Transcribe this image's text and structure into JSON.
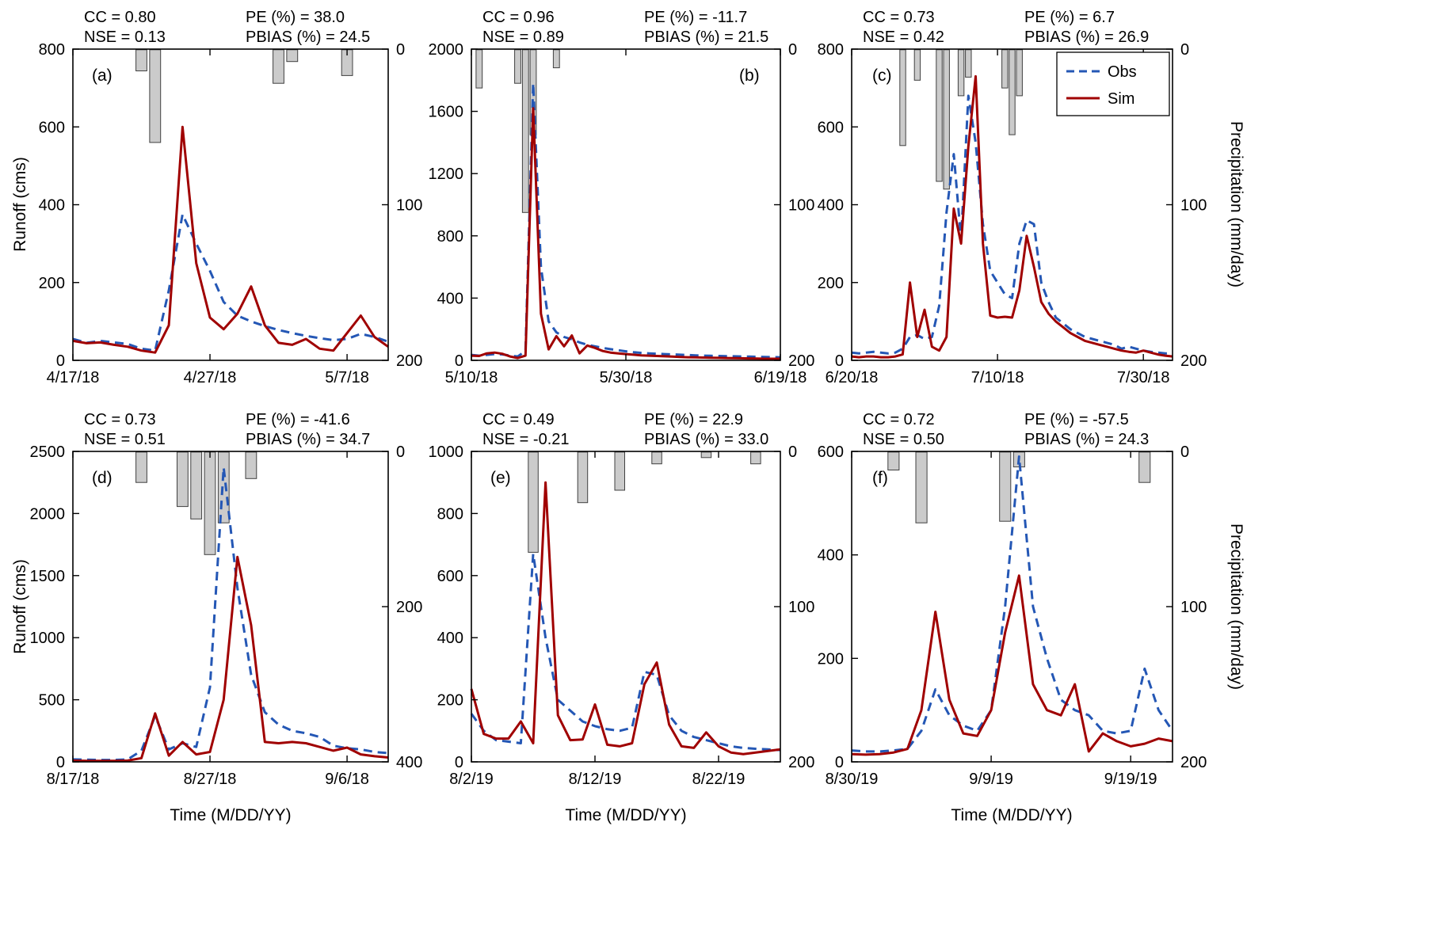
{
  "figure": {
    "ylabel_left": "Runoff (cms)",
    "ylabel_right": "Precipitation (mm/day)",
    "xlabel": "Time (M/DD/YY)",
    "legend": {
      "obs": "Obs",
      "sim": "Sim"
    },
    "colors": {
      "obs": "#2457b5",
      "sim": "#a00000",
      "precip_fill": "#cbcbcb",
      "precip_edge": "#404040",
      "axis": "#000000",
      "background": "#ffffff"
    }
  },
  "chart_data": [
    {
      "id": "a",
      "letter": "(a)",
      "type": "line+bar",
      "stats": {
        "cc": "CC = 0.80",
        "nse": "NSE = 0.13",
        "pe": "PE (%) = 38.0",
        "pbias": "PBIAS (%) = 24.5"
      },
      "n_days": 24,
      "x_ticks": [
        {
          "day": 0,
          "label": "4/17/18"
        },
        {
          "day": 10,
          "label": "4/27/18"
        },
        {
          "day": 20,
          "label": "5/7/18"
        }
      ],
      "runoff_ylim": [
        0,
        800
      ],
      "runoff_ticks": [
        0,
        200,
        400,
        600,
        800
      ],
      "precip_ylim": [
        0,
        200
      ],
      "precip_ticks": [
        0,
        100,
        200
      ],
      "series": [
        {
          "name": "Obs",
          "axis": "runoff",
          "style": "dashed",
          "values": [
            55,
            45,
            50,
            46,
            42,
            30,
            25,
            180,
            375,
            300,
            230,
            150,
            115,
            100,
            88,
            78,
            70,
            63,
            57,
            52,
            55,
            68,
            60,
            48
          ]
        },
        {
          "name": "Sim",
          "axis": "runoff",
          "style": "solid",
          "values": [
            50,
            44,
            46,
            40,
            35,
            25,
            20,
            90,
            600,
            250,
            110,
            80,
            120,
            190,
            90,
            45,
            40,
            55,
            30,
            25,
            70,
            115,
            60,
            35
          ]
        },
        {
          "name": "Precipitation",
          "axis": "precip",
          "style": "bar",
          "values": [
            0,
            0,
            0,
            0,
            0,
            14,
            60,
            0,
            0,
            0,
            0,
            0,
            0,
            0,
            0,
            22,
            8,
            0,
            0,
            0,
            17,
            0,
            0,
            0
          ]
        }
      ]
    },
    {
      "id": "b",
      "letter": "(b)",
      "type": "line+bar",
      "stats": {
        "cc": "CC = 0.96",
        "nse": "NSE = 0.89",
        "pe": "PE (%) = -11.7",
        "pbias": "PBIAS (%) = 21.5"
      },
      "n_days": 41,
      "x_ticks": [
        {
          "day": 0,
          "label": "5/10/18"
        },
        {
          "day": 20,
          "label": "5/30/18"
        },
        {
          "day": 40,
          "label": "6/19/18"
        }
      ],
      "runoff_ylim": [
        0,
        2000
      ],
      "runoff_ticks": [
        0,
        400,
        800,
        1200,
        1600,
        2000
      ],
      "precip_ylim": [
        0,
        200
      ],
      "precip_ticks": [
        0,
        100,
        200
      ],
      "series": [
        {
          "name": "Obs",
          "axis": "runoff",
          "style": "dashed",
          "values": [
            35,
            30,
            35,
            40,
            38,
            30,
            25,
            60,
            1780,
            600,
            250,
            180,
            150,
            135,
            115,
            100,
            90,
            80,
            72,
            65,
            58,
            52,
            48,
            45,
            42,
            40,
            38,
            36,
            34,
            32,
            30,
            29,
            28,
            27,
            26,
            25,
            24,
            23,
            22,
            21,
            20
          ]
        },
        {
          "name": "Sim",
          "axis": "runoff",
          "style": "solid",
          "values": [
            30,
            28,
            45,
            50,
            42,
            25,
            15,
            30,
            1620,
            300,
            70,
            155,
            90,
            160,
            45,
            95,
            80,
            60,
            50,
            45,
            40,
            36,
            32,
            30,
            28,
            26,
            24,
            22,
            20,
            19,
            18,
            17,
            16,
            15,
            14,
            13,
            12,
            11,
            10,
            10,
            10
          ]
        },
        {
          "name": "Precipitation",
          "axis": "precip",
          "style": "bar",
          "values": [
            0,
            25,
            0,
            0,
            0,
            0,
            22,
            105,
            55,
            0,
            0,
            12,
            0,
            0,
            0,
            0,
            0,
            0,
            0,
            0,
            0,
            0,
            0,
            0,
            0,
            0,
            0,
            0,
            0,
            0,
            0,
            0,
            0,
            0,
            0,
            0,
            0,
            0,
            0,
            0,
            0
          ]
        }
      ]
    },
    {
      "id": "c",
      "letter": "(c)",
      "type": "line+bar",
      "legend": true,
      "stats": {
        "cc": "CC = 0.73",
        "nse": "NSE = 0.42",
        "pe": "PE (%) = 6.7",
        "pbias": "PBIAS (%) = 26.9"
      },
      "n_days": 45,
      "x_ticks": [
        {
          "day": 0,
          "label": "6/20/18"
        },
        {
          "day": 20,
          "label": "7/10/18"
        },
        {
          "day": 40,
          "label": "7/30/18"
        }
      ],
      "runoff_ylim": [
        0,
        800
      ],
      "runoff_ticks": [
        0,
        200,
        400,
        600,
        800
      ],
      "precip_ylim": [
        0,
        200
      ],
      "precip_ticks": [
        0,
        100,
        200
      ],
      "series": [
        {
          "name": "Obs",
          "axis": "runoff",
          "style": "dashed",
          "values": [
            20,
            18,
            20,
            22,
            20,
            18,
            20,
            30,
            60,
            65,
            55,
            60,
            140,
            380,
            530,
            310,
            680,
            560,
            350,
            230,
            200,
            170,
            160,
            300,
            360,
            350,
            200,
            150,
            110,
            95,
            80,
            70,
            60,
            55,
            50,
            45,
            40,
            30,
            35,
            30,
            25,
            22,
            20,
            18,
            18
          ]
        },
        {
          "name": "Sim",
          "axis": "runoff",
          "style": "solid",
          "values": [
            10,
            8,
            10,
            10,
            8,
            8,
            10,
            15,
            200,
            60,
            130,
            35,
            25,
            60,
            390,
            300,
            550,
            730,
            300,
            115,
            110,
            112,
            110,
            180,
            320,
            240,
            150,
            120,
            100,
            85,
            70,
            60,
            50,
            45,
            40,
            35,
            30,
            25,
            22,
            20,
            25,
            20,
            15,
            12,
            10
          ]
        },
        {
          "name": "Precipitation",
          "axis": "precip",
          "style": "bar",
          "values": [
            0,
            0,
            0,
            0,
            0,
            0,
            0,
            62,
            0,
            20,
            0,
            0,
            85,
            90,
            0,
            30,
            18,
            0,
            0,
            0,
            0,
            25,
            55,
            30,
            0,
            0,
            0,
            0,
            0,
            0,
            0,
            0,
            0,
            0,
            0,
            0,
            0,
            0,
            0,
            0,
            0,
            0,
            0,
            0,
            0
          ]
        }
      ]
    },
    {
      "id": "d",
      "letter": "(d)",
      "type": "line+bar",
      "stats": {
        "cc": "CC = 0.73",
        "nse": "NSE = 0.51",
        "pe": "PE (%) = -41.6",
        "pbias": "PBIAS (%) = 34.7"
      },
      "n_days": 24,
      "x_ticks": [
        {
          "day": 0,
          "label": "8/17/18"
        },
        {
          "day": 10,
          "label": "8/27/18"
        },
        {
          "day": 20,
          "label": "9/6/18"
        }
      ],
      "runoff_ylim": [
        0,
        2500
      ],
      "runoff_ticks": [
        0,
        500,
        1000,
        1500,
        2000,
        2500
      ],
      "precip_ylim": [
        0,
        400
      ],
      "precip_ticks": [
        0,
        200,
        400
      ],
      "series": [
        {
          "name": "Obs",
          "axis": "runoff",
          "style": "dashed",
          "values": [
            20,
            18,
            15,
            15,
            20,
            90,
            370,
            100,
            150,
            120,
            600,
            2370,
            1400,
            700,
            400,
            300,
            250,
            230,
            200,
            130,
            110,
            100,
            80,
            70
          ]
        },
        {
          "name": "Sim",
          "axis": "runoff",
          "style": "solid",
          "values": [
            10,
            8,
            8,
            8,
            10,
            30,
            390,
            50,
            160,
            60,
            80,
            500,
            1650,
            1100,
            160,
            150,
            160,
            150,
            120,
            90,
            115,
            60,
            45,
            35
          ]
        },
        {
          "name": "Precipitation",
          "axis": "precip",
          "style": "bar",
          "values": [
            0,
            0,
            0,
            0,
            0,
            40,
            0,
            0,
            71,
            87,
            133,
            92,
            0,
            35,
            0,
            0,
            0,
            0,
            0,
            0,
            0,
            0,
            0,
            0
          ]
        }
      ]
    },
    {
      "id": "e",
      "letter": "(e)",
      "type": "line+bar",
      "stats": {
        "cc": "CC = 0.49",
        "nse": "NSE = -0.21",
        "pe": "PE (%) = 22.9",
        "pbias": "PBIAS (%) = 33.0"
      },
      "n_days": 26,
      "x_ticks": [
        {
          "day": 0,
          "label": "8/2/19"
        },
        {
          "day": 10,
          "label": "8/12/19"
        },
        {
          "day": 20,
          "label": "8/22/19"
        }
      ],
      "runoff_ylim": [
        0,
        1000
      ],
      "runoff_ticks": [
        0,
        200,
        400,
        600,
        800,
        1000
      ],
      "precip_ylim": [
        0,
        200
      ],
      "precip_ticks": [
        0,
        100,
        200
      ],
      "series": [
        {
          "name": "Obs",
          "axis": "runoff",
          "style": "dashed",
          "values": [
            155,
            100,
            70,
            65,
            60,
            670,
            400,
            200,
            165,
            130,
            115,
            105,
            100,
            110,
            290,
            280,
            150,
            100,
            80,
            70,
            60,
            50,
            45,
            42,
            40,
            38
          ]
        },
        {
          "name": "Sim",
          "axis": "runoff",
          "style": "solid",
          "values": [
            235,
            90,
            75,
            75,
            130,
            60,
            900,
            150,
            70,
            72,
            185,
            55,
            50,
            60,
            250,
            320,
            120,
            50,
            45,
            95,
            50,
            30,
            25,
            30,
            35,
            40
          ]
        },
        {
          "name": "Precipitation",
          "axis": "precip",
          "style": "bar",
          "values": [
            0,
            0,
            0,
            0,
            0,
            65,
            0,
            0,
            0,
            33,
            0,
            0,
            25,
            0,
            0,
            8,
            0,
            0,
            0,
            4,
            0,
            0,
            0,
            8,
            0,
            0
          ]
        }
      ]
    },
    {
      "id": "f",
      "letter": "(f)",
      "type": "line+bar",
      "stats": {
        "cc": "CC = 0.72",
        "nse": "NSE = 0.50",
        "pe": "PE (%) = -57.5",
        "pbias": "PBIAS (%) = 24.3"
      },
      "n_days": 24,
      "x_ticks": [
        {
          "day": 0,
          "label": "8/30/19"
        },
        {
          "day": 10,
          "label": "9/9/19"
        },
        {
          "day": 20,
          "label": "9/19/19"
        }
      ],
      "runoff_ylim": [
        0,
        600
      ],
      "runoff_ticks": [
        0,
        200,
        400,
        600
      ],
      "precip_ylim": [
        0,
        200
      ],
      "precip_ticks": [
        0,
        100,
        200
      ],
      "series": [
        {
          "name": "Obs",
          "axis": "runoff",
          "style": "dashed",
          "values": [
            22,
            20,
            20,
            22,
            25,
            60,
            140,
            90,
            70,
            60,
            100,
            300,
            590,
            300,
            200,
            120,
            100,
            90,
            60,
            55,
            60,
            180,
            100,
            60
          ]
        },
        {
          "name": "Sim",
          "axis": "runoff",
          "style": "solid",
          "values": [
            15,
            14,
            15,
            18,
            25,
            100,
            290,
            120,
            55,
            50,
            100,
            250,
            360,
            150,
            100,
            90,
            150,
            20,
            55,
            40,
            30,
            35,
            45,
            40
          ]
        },
        {
          "name": "Precipitation",
          "axis": "precip",
          "style": "bar",
          "values": [
            0,
            0,
            0,
            12,
            0,
            46,
            0,
            0,
            0,
            0,
            0,
            45,
            10,
            0,
            0,
            0,
            0,
            0,
            0,
            0,
            0,
            20,
            0,
            0
          ]
        }
      ]
    }
  ]
}
